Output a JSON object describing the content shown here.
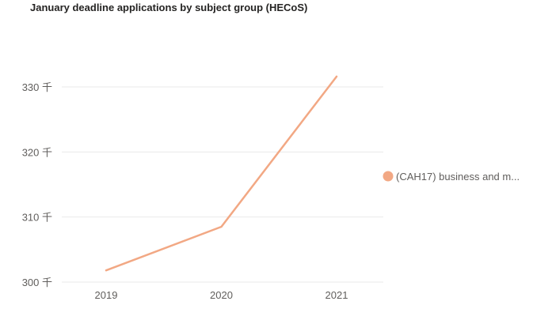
{
  "chart_data": {
    "type": "line",
    "title": "January deadline applications by subject group (HECoS)",
    "xlabel": "",
    "ylabel": "",
    "x": [
      "2019",
      "2020",
      "2021"
    ],
    "ylim": [
      300000,
      333000
    ],
    "yticks": [
      {
        "value": 300000,
        "label": "300 千"
      },
      {
        "value": 310000,
        "label": "310 千"
      },
      {
        "value": 320000,
        "label": "320 千"
      },
      {
        "value": 330000,
        "label": "330 千"
      }
    ],
    "series": [
      {
        "name": "(CAH17) business and m...",
        "color": "#F2A884",
        "values": [
          301800,
          308500,
          331600
        ]
      }
    ],
    "grid": true,
    "legend_position": "right"
  }
}
